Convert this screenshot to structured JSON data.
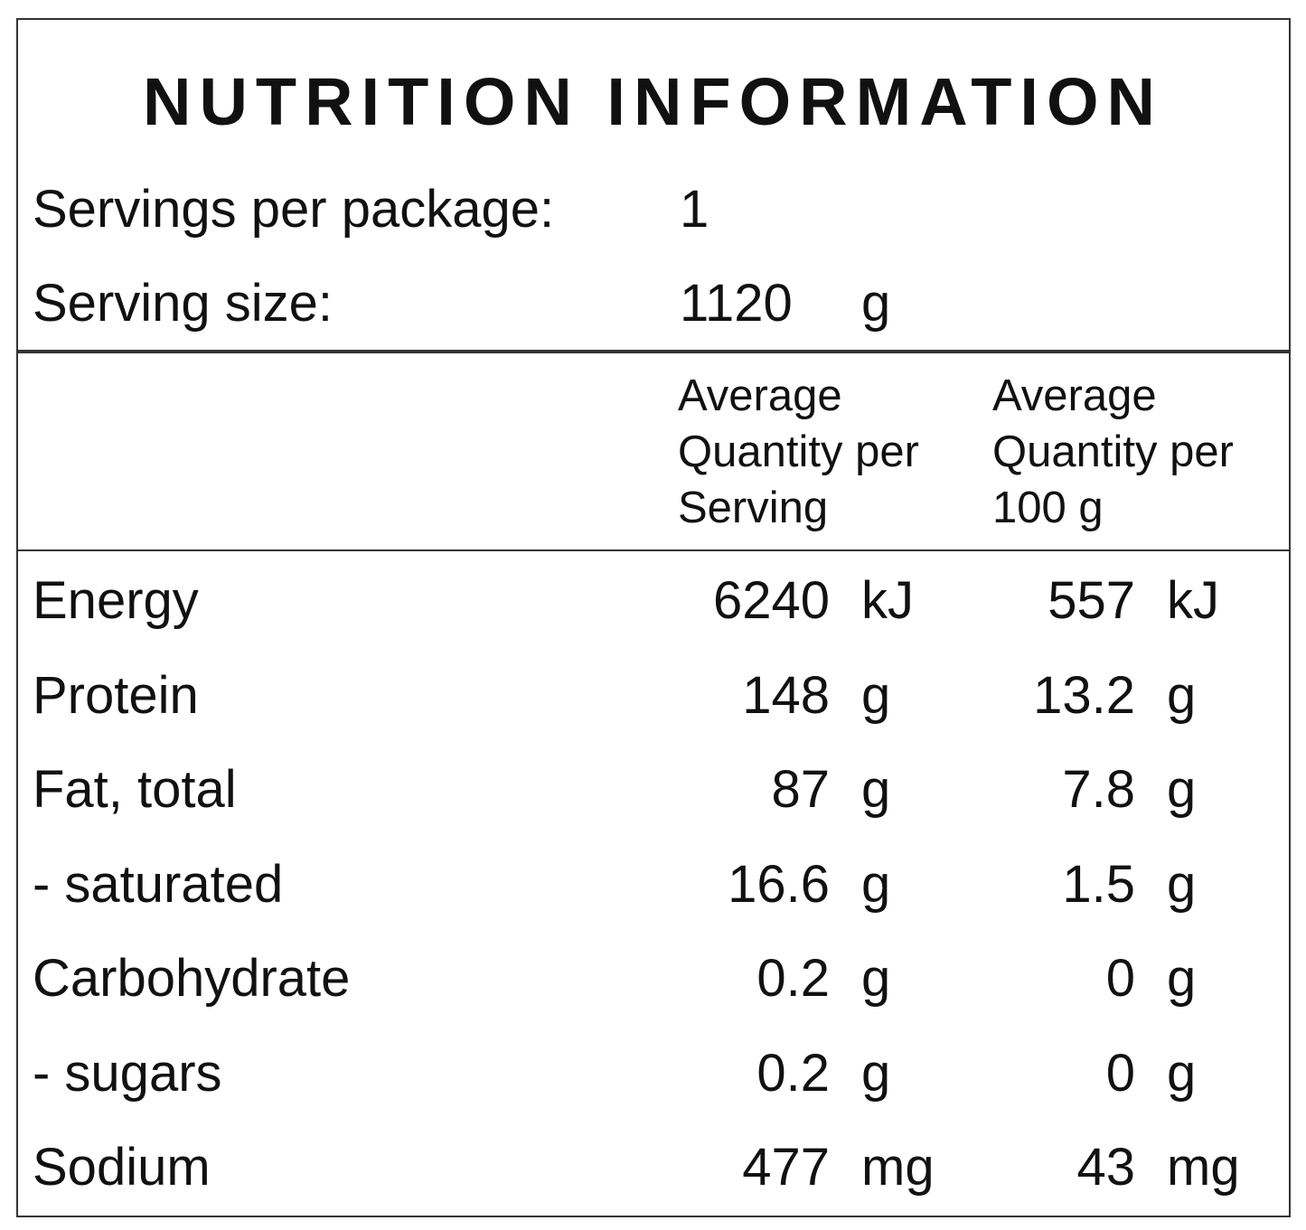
{
  "header": {
    "title": "NUTRITION INFORMATION"
  },
  "servings": {
    "label": "Servings per package:",
    "value": "1"
  },
  "serving_size": {
    "label": "Serving size:",
    "value": "1120",
    "unit": "g"
  },
  "table": {
    "columns": [
      [
        "Average",
        "Quantity per",
        "Serving"
      ],
      [
        "Average",
        "Quantity per",
        "100 g"
      ]
    ],
    "rows": [
      [
        "Energy",
        "6240",
        "kJ",
        "557",
        "kJ"
      ],
      [
        "Protein",
        "148",
        "g",
        "13.2",
        "g"
      ],
      [
        "Fat, total",
        "87",
        "g",
        "7.8",
        "g"
      ],
      [
        "- saturated",
        "16.6",
        "g",
        "1.5",
        "g"
      ],
      [
        "Carbohydrate",
        "0.2",
        "g",
        "0",
        "g"
      ],
      [
        "- sugars",
        "0.2",
        "g",
        "0",
        "g"
      ],
      [
        "Sodium",
        "477",
        "mg",
        "43",
        "mg"
      ]
    ]
  }
}
